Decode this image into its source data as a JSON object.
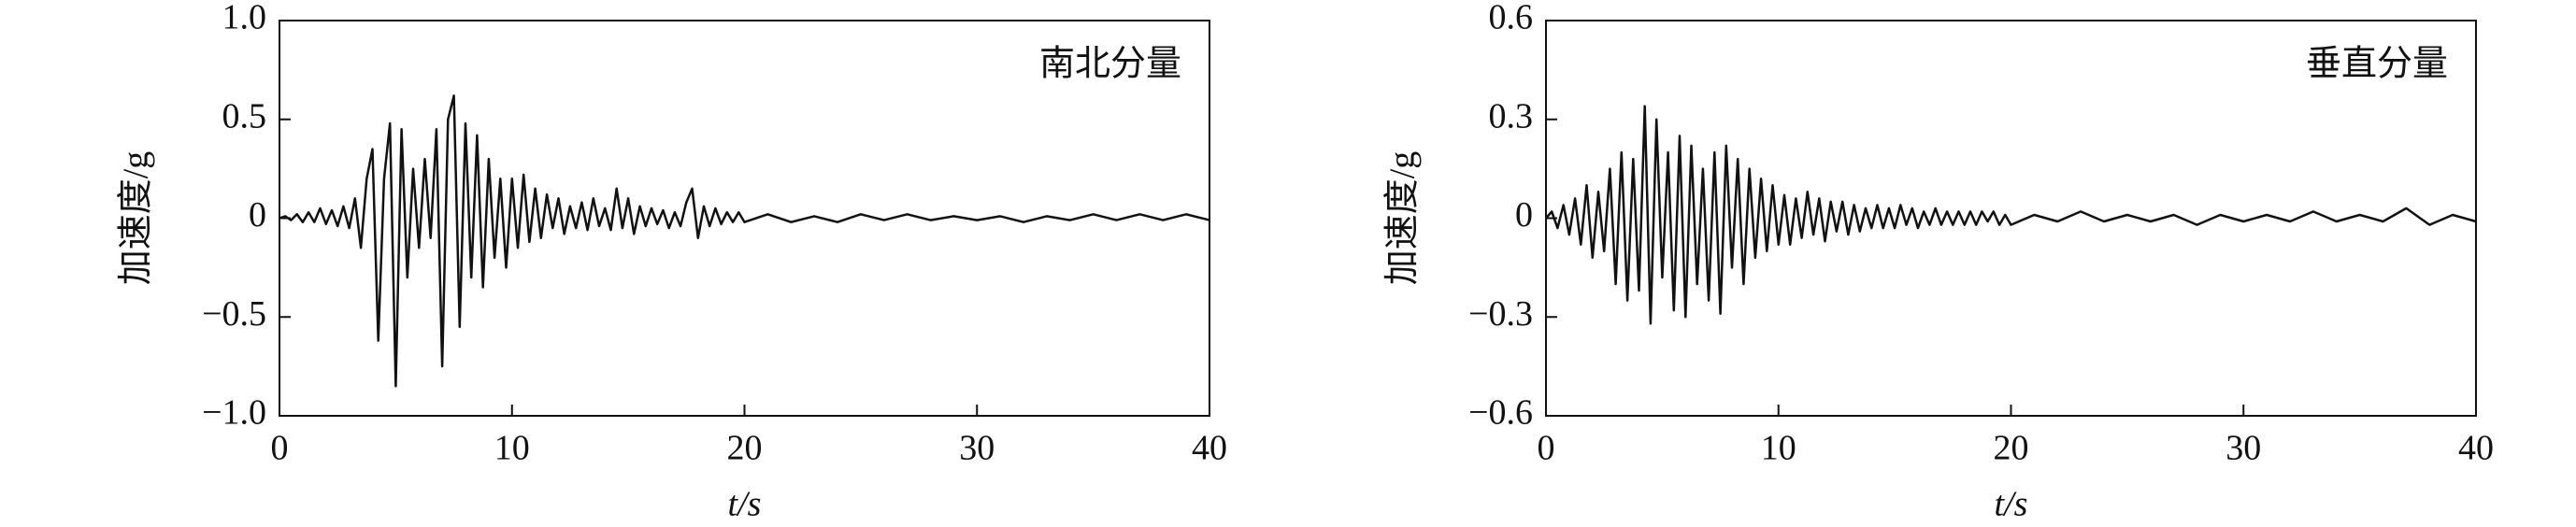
{
  "chart_data": [
    {
      "type": "line",
      "annotation": "南北分量",
      "ylabel": "加速度/g",
      "xlabel": "t/s",
      "color": "#111111",
      "xlim": [
        0,
        40
      ],
      "xticks": [
        0,
        10,
        20,
        30,
        40
      ],
      "ylim": [
        -1,
        1
      ],
      "yticks": [
        {
          "value": 1,
          "label": "1.0"
        },
        {
          "value": 0.5,
          "label": "0.5"
        },
        0,
        {
          "value": -0.5,
          "label": "−0.5"
        },
        {
          "value": -1,
          "label": "−1.0"
        }
      ],
      "x": [
        0,
        0.25,
        0.5,
        0.75,
        1,
        1.25,
        1.5,
        1.75,
        2,
        2.25,
        2.5,
        2.75,
        3,
        3.25,
        3.5,
        3.75,
        4,
        4.25,
        4.5,
        4.75,
        5,
        5.25,
        5.5,
        5.75,
        6,
        6.25,
        6.5,
        6.75,
        7,
        7.25,
        7.5,
        7.75,
        8,
        8.25,
        8.5,
        8.75,
        9,
        9.25,
        9.5,
        9.75,
        10,
        10.25,
        10.5,
        10.75,
        11,
        11.25,
        11.5,
        11.75,
        12,
        12.25,
        12.5,
        12.75,
        13,
        13.25,
        13.5,
        13.75,
        14,
        14.25,
        14.5,
        14.75,
        15,
        15.25,
        15.5,
        15.75,
        16,
        16.25,
        16.5,
        16.75,
        17,
        17.25,
        17.5,
        17.75,
        18,
        18.25,
        18.5,
        18.75,
        19,
        19.25,
        19.5,
        19.75,
        20,
        21,
        22,
        23,
        24,
        25,
        26,
        27,
        28,
        29,
        30,
        31,
        32,
        33,
        34,
        35,
        36,
        37,
        38,
        39,
        40
      ],
      "values": [
        0,
        0.01,
        -0.01,
        0.02,
        -0.02,
        0.03,
        -0.02,
        0.05,
        -0.03,
        0.04,
        -0.04,
        0.06,
        -0.05,
        0.1,
        -0.15,
        0.2,
        0.35,
        -0.62,
        0.2,
        0.48,
        -0.85,
        0.45,
        -0.3,
        0.25,
        -0.15,
        0.3,
        -0.1,
        0.45,
        -0.75,
        0.5,
        0.62,
        -0.55,
        0.48,
        -0.3,
        0.42,
        -0.35,
        0.3,
        -0.2,
        0.2,
        -0.25,
        0.2,
        -0.15,
        0.22,
        -0.12,
        0.15,
        -0.1,
        0.12,
        -0.05,
        0.1,
        -0.08,
        0.06,
        -0.05,
        0.08,
        -0.06,
        0.1,
        -0.04,
        0.05,
        -0.06,
        0.15,
        -0.05,
        0.1,
        -0.08,
        0.06,
        -0.04,
        0.05,
        -0.03,
        0.04,
        -0.05,
        0.03,
        -0.04,
        0.08,
        0.15,
        -0.1,
        0.06,
        -0.04,
        0.05,
        -0.03,
        0.03,
        -0.02,
        0.03,
        -0.02,
        0.02,
        -0.02,
        0.01,
        -0.02,
        0.02,
        -0.01,
        0.02,
        -0.01,
        0.01,
        -0.01,
        0.01,
        -0.02,
        0.01,
        -0.01,
        0.02,
        -0.01,
        0.02,
        -0.01,
        0.02,
        -0.01
      ]
    },
    {
      "type": "line",
      "annotation": "垂直分量",
      "ylabel": "加速度/g",
      "xlabel": "t/s",
      "color": "#111111",
      "xlim": [
        0,
        40
      ],
      "xticks": [
        0,
        10,
        20,
        30,
        40
      ],
      "ylim": [
        -0.6,
        0.6
      ],
      "yticks": [
        0.6,
        0.3,
        0,
        {
          "value": -0.3,
          "label": "−0.3"
        },
        {
          "value": -0.6,
          "label": "−0.6"
        }
      ],
      "x": [
        0,
        0.25,
        0.5,
        0.75,
        1,
        1.25,
        1.5,
        1.75,
        2,
        2.25,
        2.5,
        2.75,
        3,
        3.25,
        3.5,
        3.75,
        4,
        4.25,
        4.5,
        4.75,
        5,
        5.25,
        5.5,
        5.75,
        6,
        6.25,
        6.5,
        6.75,
        7,
        7.25,
        7.5,
        7.75,
        8,
        8.25,
        8.5,
        8.75,
        9,
        9.25,
        9.5,
        9.75,
        10,
        10.25,
        10.5,
        10.75,
        11,
        11.25,
        11.5,
        11.75,
        12,
        12.25,
        12.5,
        12.75,
        13,
        13.25,
        13.5,
        13.75,
        14,
        14.25,
        14.5,
        14.75,
        15,
        15.25,
        15.5,
        15.75,
        16,
        16.25,
        16.5,
        16.75,
        17,
        17.25,
        17.5,
        17.75,
        18,
        18.25,
        18.5,
        18.75,
        19,
        19.25,
        19.5,
        19.75,
        20,
        21,
        22,
        23,
        24,
        25,
        26,
        27,
        28,
        29,
        30,
        31,
        32,
        33,
        34,
        35,
        36,
        37,
        38,
        39,
        40
      ],
      "values": [
        0,
        0.02,
        -0.03,
        0.04,
        -0.05,
        0.06,
        -0.08,
        0.1,
        -0.12,
        0.08,
        -0.1,
        0.15,
        -0.2,
        0.2,
        -0.25,
        0.18,
        -0.22,
        0.34,
        -0.32,
        0.3,
        -0.18,
        0.2,
        -0.28,
        0.25,
        -0.3,
        0.22,
        -0.2,
        0.15,
        -0.25,
        0.2,
        -0.29,
        0.22,
        -0.15,
        0.18,
        -0.2,
        0.15,
        -0.12,
        0.12,
        -0.1,
        0.1,
        -0.08,
        0.07,
        -0.08,
        0.06,
        -0.06,
        0.08,
        -0.05,
        0.06,
        -0.07,
        0.05,
        -0.04,
        0.05,
        -0.05,
        0.04,
        -0.04,
        0.03,
        -0.03,
        0.04,
        -0.03,
        0.03,
        -0.03,
        0.04,
        -0.02,
        0.03,
        -0.03,
        0.02,
        -0.02,
        0.03,
        -0.02,
        0.02,
        -0.02,
        0.02,
        -0.02,
        0.02,
        -0.02,
        0.02,
        -0.01,
        0.02,
        -0.02,
        0.01,
        -0.02,
        0.01,
        -0.01,
        0.02,
        -0.01,
        0.01,
        -0.01,
        0.01,
        -0.02,
        0.01,
        -0.01,
        0.01,
        -0.01,
        0.02,
        -0.01,
        0.01,
        -0.01,
        0.03,
        -0.02,
        0.01,
        -0.01
      ]
    }
  ]
}
